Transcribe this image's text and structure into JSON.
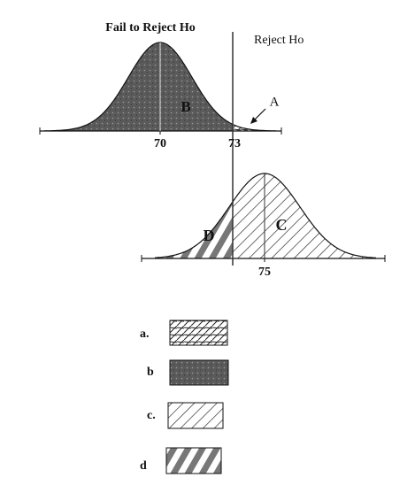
{
  "labels": {
    "fail": "Fail to Reject Ho",
    "reject": "Reject Ho"
  },
  "regions": {
    "a": "A",
    "b": "B",
    "c": "C",
    "d": "D"
  },
  "axis": {
    "top_mean": "70",
    "critical": "73",
    "bottom_mean": "75"
  },
  "legend": [
    {
      "letter": "a."
    },
    {
      "letter": "b"
    },
    {
      "letter": "c."
    },
    {
      "letter": "d"
    }
  ]
}
